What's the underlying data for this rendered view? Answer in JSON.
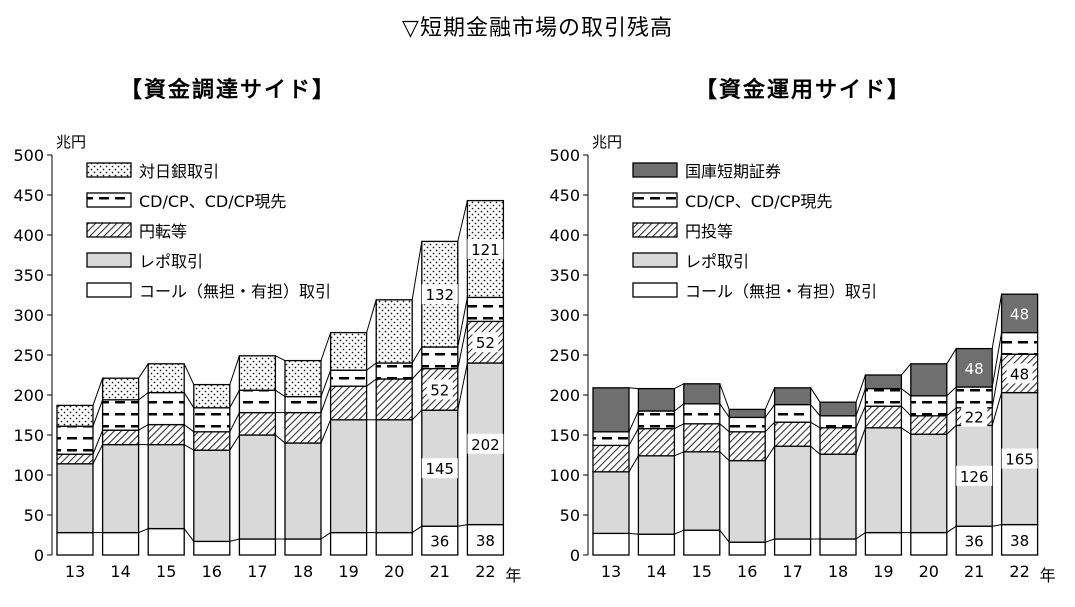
{
  "main_title": "▽短期金融市場の取引残高",
  "chart_data": [
    {
      "type": "bar",
      "stacked": true,
      "title": "【資金調達サイド】",
      "ylabel": "兆円",
      "xunit": "年",
      "ylim": [
        0,
        500
      ],
      "yticks": [
        0,
        50,
        100,
        150,
        200,
        250,
        300,
        350,
        400,
        450,
        500
      ],
      "grid": false,
      "legend_position": "top-left",
      "categories": [
        "13",
        "14",
        "15",
        "16",
        "17",
        "18",
        "19",
        "20",
        "21",
        "22"
      ],
      "series": [
        {
          "name": "コール（無担・有担）取引",
          "pattern": "white",
          "values": [
            28,
            28,
            33,
            17,
            20,
            20,
            28,
            28,
            36,
            38
          ]
        },
        {
          "name": "レポ取引",
          "pattern": "lightgray",
          "values": [
            86,
            110,
            105,
            114,
            130,
            120,
            141,
            141,
            145,
            202
          ]
        },
        {
          "name": "円転等",
          "pattern": "hatch",
          "values": [
            12,
            18,
            25,
            23,
            28,
            38,
            42,
            51,
            52,
            52
          ]
        },
        {
          "name": "CD/CP、CD/CP現先",
          "pattern": "dash",
          "values": [
            35,
            38,
            40,
            30,
            28,
            20,
            20,
            20,
            27,
            30
          ]
        },
        {
          "name": "対日銀取引",
          "pattern": "dots",
          "values": [
            26,
            27,
            36,
            29,
            43,
            45,
            47,
            79,
            132,
            121
          ]
        }
      ],
      "data_labels": [
        {
          "category": "21",
          "series": 0,
          "text": "36"
        },
        {
          "category": "22",
          "series": 0,
          "text": "38"
        },
        {
          "category": "21",
          "series": 1,
          "text": "145"
        },
        {
          "category": "22",
          "series": 1,
          "text": "202"
        },
        {
          "category": "21",
          "series": 2,
          "text": "52"
        },
        {
          "category": "22",
          "series": 2,
          "text": "52"
        },
        {
          "category": "21",
          "series": 4,
          "text": "132"
        },
        {
          "category": "22",
          "series": 4,
          "text": "121"
        }
      ]
    },
    {
      "type": "bar",
      "stacked": true,
      "title": "【資金運用サイド】",
      "ylabel": "兆円",
      "xunit": "年",
      "ylim": [
        0,
        500
      ],
      "yticks": [
        0,
        50,
        100,
        150,
        200,
        250,
        300,
        350,
        400,
        450,
        500
      ],
      "grid": false,
      "legend_position": "top-left",
      "categories": [
        "13",
        "14",
        "15",
        "16",
        "17",
        "18",
        "19",
        "20",
        "21",
        "22"
      ],
      "series": [
        {
          "name": "コール（無担・有担）取引",
          "pattern": "white",
          "values": [
            27,
            26,
            31,
            16,
            20,
            20,
            28,
            28,
            36,
            38
          ]
        },
        {
          "name": "レポ取引",
          "pattern": "lightgray",
          "values": [
            77,
            98,
            98,
            102,
            116,
            106,
            131,
            123,
            126,
            165
          ]
        },
        {
          "name": "円投等",
          "pattern": "hatch",
          "values": [
            33,
            34,
            35,
            36,
            30,
            33,
            27,
            23,
            22,
            48
          ]
        },
        {
          "name": "CD/CP、CD/CP現先",
          "pattern": "dash",
          "values": [
            17,
            22,
            25,
            18,
            22,
            15,
            22,
            25,
            26,
            27
          ]
        },
        {
          "name": "国庫短期証券",
          "pattern": "dark",
          "values": [
            55,
            28,
            25,
            10,
            21,
            17,
            17,
            40,
            48,
            48
          ]
        }
      ],
      "data_labels": [
        {
          "category": "21",
          "series": 0,
          "text": "36"
        },
        {
          "category": "22",
          "series": 0,
          "text": "38"
        },
        {
          "category": "21",
          "series": 1,
          "text": "126"
        },
        {
          "category": "22",
          "series": 1,
          "text": "165"
        },
        {
          "category": "21",
          "series": 2,
          "text": "22"
        },
        {
          "category": "22",
          "series": 2,
          "text": "48"
        },
        {
          "category": "21",
          "series": 4,
          "text": "48"
        },
        {
          "category": "22",
          "series": 4,
          "text": "48"
        }
      ]
    }
  ],
  "colors": {
    "lightgray": "#d9d9d9",
    "dark": "#6f6f6f",
    "dots": "#222222",
    "hatch": "#333333"
  }
}
